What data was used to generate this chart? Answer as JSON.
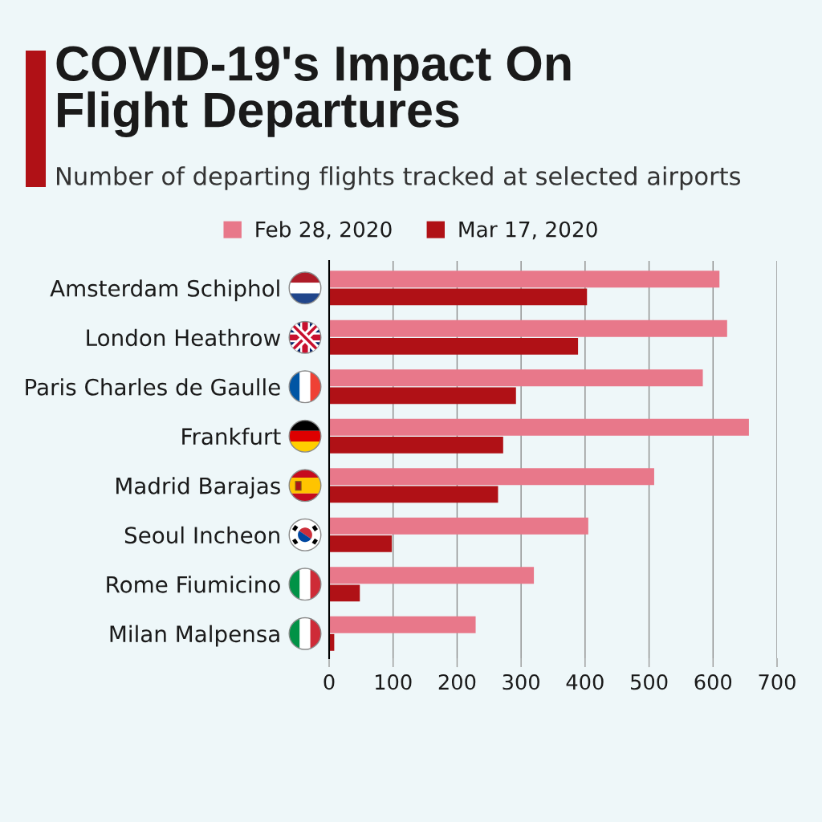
{
  "chart_data": {
    "type": "bar",
    "orientation": "horizontal",
    "title": "COVID-19's Impact On\nFlight Departures",
    "subtitle": "Number of departing flights tracked at selected airports",
    "categories": [
      "Amsterdam Schiphol",
      "London Heathrow",
      "Paris Charles de Gaulle",
      "Frankfurt",
      "Madrid Barajas",
      "Seoul Incheon",
      "Rome Fiumicino",
      "Milan Malpensa"
    ],
    "series": [
      {
        "name": "Feb 28, 2020",
        "color": "#e8788a",
        "values": [
          610,
          622,
          584,
          656,
          508,
          405,
          320,
          229
        ]
      },
      {
        "name": "Mar 17, 2020",
        "color": "#b01116",
        "values": [
          403,
          389,
          292,
          272,
          264,
          98,
          48,
          8
        ]
      }
    ],
    "xlim": [
      0,
      700
    ],
    "xticks": [
      0,
      100,
      200,
      300,
      400,
      500,
      600,
      700
    ],
    "grid": "x",
    "legend": "top"
  }
}
